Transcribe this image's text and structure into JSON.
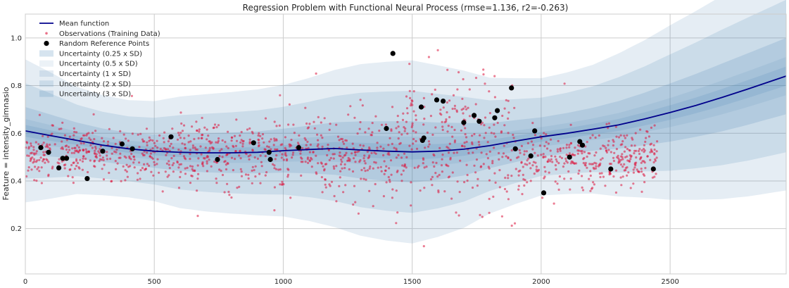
{
  "chart_data": {
    "type": "scatter",
    "title": "Regression Problem with Functional Neural Process (rmse=1.136, r2=-0.263)",
    "xlabel": "",
    "ylabel": "Feature = intensity_gimnasio",
    "xlim": [
      0,
      2950
    ],
    "ylim": [
      0.01,
      1.1
    ],
    "x_ticks": [
      0,
      500,
      1000,
      1500,
      2000,
      2500
    ],
    "y_ticks": [
      0.2,
      0.4,
      0.6,
      0.8,
      1.0
    ],
    "y_tick_labels": [
      "0.2",
      "0.4",
      "0.6",
      "0.8",
      "1.0"
    ],
    "grid": true,
    "legend_position": "top-left",
    "colors": {
      "mean": "#00008b",
      "observations": "#dc143c",
      "reference": "#000000",
      "uncertainty": "#4682b4",
      "grid": "#cccccc",
      "frame": "#cccccc"
    },
    "legend": [
      {
        "label": "Mean function",
        "kind": "line"
      },
      {
        "label": "Observations (Training Data)",
        "kind": "small-dot"
      },
      {
        "label": "Random Reference Points",
        "kind": "big-dot"
      },
      {
        "label": "Uncertainty (0.25 x SD)",
        "kind": "band",
        "opacity": 0.22
      },
      {
        "label": "Uncertainty (0.5 x SD)",
        "kind": "band",
        "opacity": 0.1
      },
      {
        "label": "Uncertainty (1 x SD)",
        "kind": "band",
        "opacity": 0.14
      },
      {
        "label": "Uncertainty (2 x SD)",
        "kind": "band",
        "opacity": 0.17
      },
      {
        "label": "Uncertainty (3 x SD)",
        "kind": "band",
        "opacity": 0.2
      }
    ],
    "mean_function": {
      "x": [
        0,
        100,
        200,
        300,
        400,
        500,
        600,
        700,
        800,
        900,
        1000,
        1100,
        1200,
        1300,
        1400,
        1500,
        1600,
        1700,
        1800,
        1900,
        2000,
        2100,
        2200,
        2300,
        2400,
        2500,
        2600,
        2700,
        2800,
        2950
      ],
      "y": [
        0.61,
        0.59,
        0.57,
        0.55,
        0.535,
        0.525,
        0.52,
        0.518,
        0.518,
        0.52,
        0.527,
        0.532,
        0.536,
        0.53,
        0.525,
        0.522,
        0.525,
        0.533,
        0.548,
        0.567,
        0.585,
        0.6,
        0.617,
        0.635,
        0.66,
        0.687,
        0.717,
        0.75,
        0.785,
        0.84
      ]
    },
    "uncertainty_sd": {
      "x": [
        0,
        100,
        200,
        300,
        400,
        500,
        600,
        700,
        800,
        900,
        1000,
        1100,
        1200,
        1300,
        1400,
        1500,
        1600,
        1700,
        1800,
        1900,
        2000,
        2100,
        2200,
        2300,
        2400,
        2500,
        2600,
        2700,
        2800,
        2950
      ],
      "sd": [
        0.1,
        0.088,
        0.075,
        0.07,
        0.068,
        0.07,
        0.078,
        0.082,
        0.085,
        0.088,
        0.092,
        0.1,
        0.11,
        0.12,
        0.125,
        0.128,
        0.12,
        0.11,
        0.095,
        0.088,
        0.082,
        0.085,
        0.09,
        0.1,
        0.11,
        0.122,
        0.132,
        0.142,
        0.15,
        0.16
      ]
    },
    "reference_points": {
      "x": [
        60,
        90,
        130,
        145,
        160,
        240,
        300,
        375,
        415,
        565,
        745,
        885,
        945,
        950,
        1060,
        1400,
        1425,
        1535,
        1540,
        1545,
        1595,
        1620,
        1700,
        1740,
        1760,
        1820,
        1830,
        1885,
        1900,
        1960,
        1975,
        2010,
        2110,
        2150,
        2160,
        2270,
        2435
      ],
      "y": [
        0.54,
        0.52,
        0.455,
        0.495,
        0.495,
        0.41,
        0.525,
        0.555,
        0.535,
        0.585,
        0.49,
        0.56,
        0.52,
        0.49,
        0.54,
        0.62,
        0.935,
        0.71,
        0.57,
        0.58,
        0.74,
        0.735,
        0.645,
        0.675,
        0.65,
        0.665,
        0.695,
        0.79,
        0.535,
        0.505,
        0.61,
        0.35,
        0.5,
        0.565,
        0.55,
        0.45,
        0.45
      ]
    },
    "observations": {
      "count_shown": 1500,
      "x_range": [
        0,
        2450
      ],
      "center": 0.51,
      "note_spread": "dense cloud of training observations"
    }
  }
}
